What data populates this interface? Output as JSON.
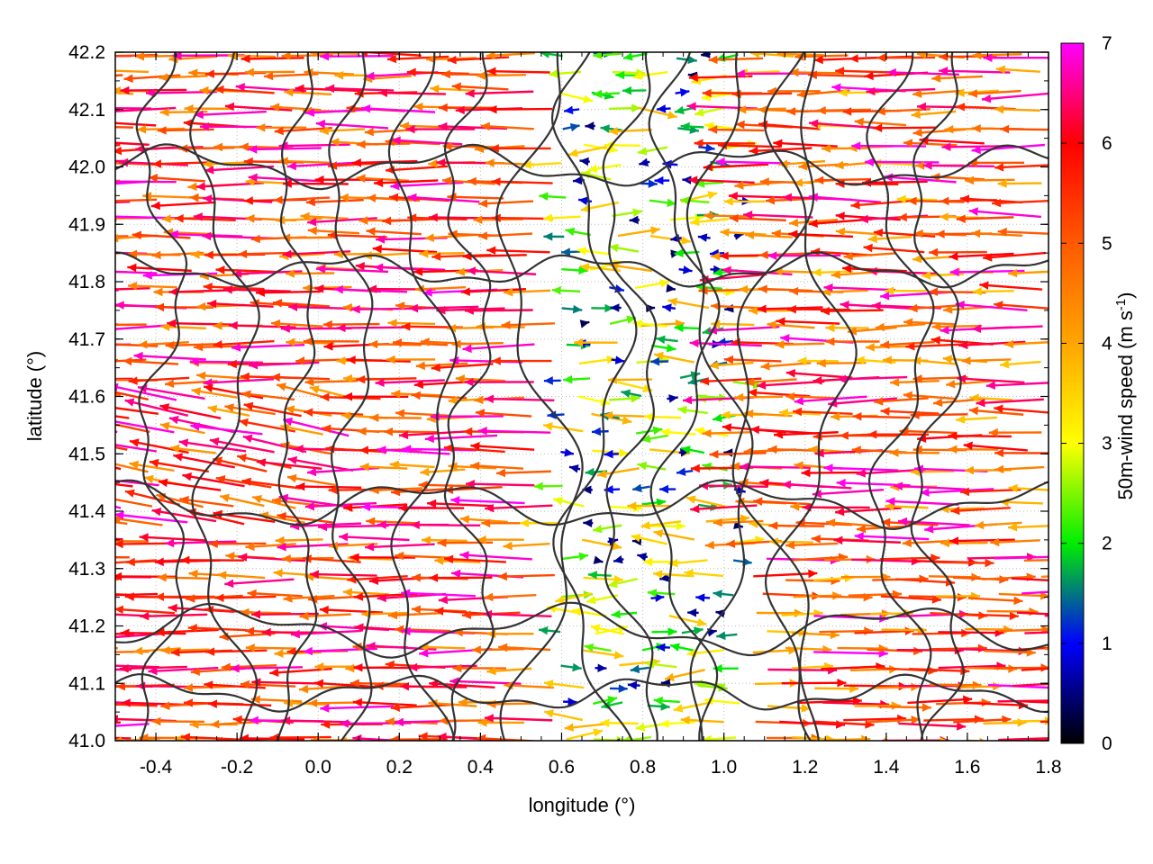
{
  "chart_data": {
    "type": "vector-field",
    "description_type": "wind vector map with terrain contours and color scale",
    "xlabel": "longitude (°)",
    "ylabel": "latitude (°)",
    "xlim": [
      -0.5,
      1.8
    ],
    "ylim": [
      41.0,
      42.2
    ],
    "x_ticks": [
      "-0.4",
      "-0.2",
      "0.0",
      "0.2",
      "0.4",
      "0.6",
      "0.8",
      "1.0",
      "1.2",
      "1.4",
      "1.6",
      "1.8"
    ],
    "x_tick_values": [
      -0.4,
      -0.2,
      0.0,
      0.2,
      0.4,
      0.6,
      0.8,
      1.0,
      1.2,
      1.4,
      1.6,
      1.8
    ],
    "y_ticks": [
      "41.0",
      "41.1",
      "41.2",
      "41.3",
      "41.4",
      "41.5",
      "41.6",
      "41.7",
      "41.8",
      "41.9",
      "42.0",
      "42.1",
      "42.2"
    ],
    "y_tick_values": [
      41.0,
      41.1,
      41.2,
      41.3,
      41.4,
      41.5,
      41.6,
      41.7,
      41.8,
      41.9,
      42.0,
      42.1,
      42.2
    ],
    "colorbar": {
      "label_main": "50m-wind speed (m s",
      "label_sup": "-1",
      "label_end": ")",
      "range": [
        0,
        7
      ],
      "ticks": [
        "0",
        "1",
        "2",
        "3",
        "4",
        "5",
        "6",
        "7"
      ],
      "tick_values": [
        0,
        1,
        2,
        3,
        4,
        5,
        6,
        7
      ],
      "palette": [
        {
          "v": 0.0,
          "c": "#000000"
        },
        {
          "v": 1.0,
          "c": "#0000ff"
        },
        {
          "v": 2.0,
          "c": "#00ee00"
        },
        {
          "v": 3.0,
          "c": "#ffff00"
        },
        {
          "v": 4.0,
          "c": "#ffa500"
        },
        {
          "v": 5.0,
          "c": "#ff5a00"
        },
        {
          "v": 6.0,
          "c": "#ff0000"
        },
        {
          "v": 7.0,
          "c": "#ff00ff"
        }
      ]
    },
    "grid": true,
    "contours": true,
    "wind_field_regions": [
      {
        "lon": [
          -0.5,
          0.6
        ],
        "lat": [
          41.0,
          42.2
        ],
        "direction": "westward",
        "speed_range": [
          4,
          7
        ]
      },
      {
        "lon": [
          0.6,
          1.05
        ],
        "lat": [
          41.0,
          42.2
        ],
        "direction": "variable",
        "speed_range": [
          0.3,
          4
        ]
      },
      {
        "lon": [
          1.05,
          1.8
        ],
        "lat": [
          41.35,
          42.2
        ],
        "direction": "westward",
        "speed_range": [
          3.5,
          7
        ]
      },
      {
        "lon": [
          1.05,
          1.8
        ],
        "lat": [
          41.0,
          41.35
        ],
        "direction": "eastward",
        "speed_range": [
          3.5,
          7
        ]
      }
    ]
  }
}
